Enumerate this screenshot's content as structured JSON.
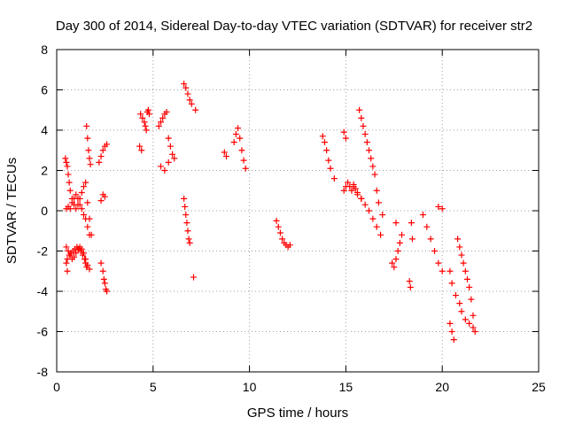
{
  "chart_data": {
    "type": "scatter",
    "title": "Day 300 of 2014, Sidereal Day-to-day VTEC variation (SDTVAR) for receiver str2",
    "xlabel": "GPS time / hours",
    "ylabel": "SDTVAR / TECUs",
    "xlim": [
      0,
      25
    ],
    "ylim": [
      -8,
      8
    ],
    "xticks": [
      0,
      5,
      10,
      15,
      20,
      25
    ],
    "yticks": [
      -8,
      -6,
      -4,
      -2,
      0,
      2,
      4,
      6,
      8
    ],
    "xtick_labels": [
      "0",
      "5",
      "10",
      "15",
      "20",
      "25"
    ],
    "ytick_labels": [
      "-8",
      "-6",
      "-4",
      "-2",
      "0",
      "2",
      "4",
      "6",
      "8"
    ],
    "grid": true,
    "marker": "+",
    "color": "#ff0000",
    "series": [
      {
        "name": "SDTVAR",
        "x": [
          0.45,
          0.5,
          0.55,
          0.6,
          0.65,
          0.7,
          0.8,
          0.9,
          1.0,
          1.1,
          1.2,
          1.3,
          1.4,
          1.5,
          1.6,
          1.7,
          1.8,
          0.5,
          0.6,
          0.7,
          0.8,
          0.9,
          1.0,
          1.1,
          1.2,
          1.3,
          1.4,
          1.5,
          1.6,
          1.7,
          0.55,
          0.65,
          0.75,
          0.85,
          0.95,
          1.05,
          1.15,
          1.25,
          1.35,
          1.45,
          1.5,
          1.55,
          0.5,
          0.6,
          0.7,
          0.8,
          0.9,
          1.0,
          1.1,
          1.2,
          1.3,
          1.4,
          1.5,
          1.6,
          1.7,
          0.5,
          0.55,
          1.55,
          1.6,
          1.65,
          1.7,
          1.75,
          2.2,
          2.3,
          2.4,
          2.5,
          2.6,
          2.4,
          2.3,
          2.5,
          2.3,
          2.4,
          2.45,
          2.5,
          2.55,
          2.6,
          4.35,
          4.45,
          4.55,
          4.6,
          4.65,
          4.7,
          4.75,
          4.8,
          4.3,
          4.4,
          5.3,
          5.4,
          5.5,
          5.6,
          5.7,
          5.8,
          5.9,
          6.0,
          6.1,
          5.4,
          5.6,
          5.8,
          6.6,
          6.7,
          6.8,
          6.9,
          7.0,
          7.2,
          6.6,
          6.65,
          6.7,
          6.75,
          6.8,
          6.85,
          6.9,
          7.1,
          8.7,
          8.8,
          9.2,
          9.3,
          9.4,
          9.5,
          9.6,
          9.7,
          9.8,
          11.4,
          11.5,
          11.6,
          11.7,
          11.8,
          11.9,
          12.0,
          12.1,
          13.8,
          13.9,
          14.0,
          14.1,
          14.2,
          14.4,
          14.9,
          15.0,
          14.9,
          15.0,
          15.1,
          15.2,
          15.3,
          15.4,
          15.5,
          15.6,
          15.8,
          15.7,
          15.8,
          15.9,
          16.0,
          16.1,
          16.2,
          16.3,
          16.4,
          16.5,
          16.6,
          16.7,
          16.9,
          15.4,
          15.6,
          15.8,
          16.0,
          16.2,
          16.4,
          16.6,
          16.8,
          17.4,
          17.5,
          17.6,
          17.7,
          17.8,
          17.9,
          17.6,
          18.3,
          18.35,
          18.4,
          18.45,
          19.0,
          19.2,
          19.4,
          19.6,
          19.8,
          20.0,
          19.8,
          20.0,
          20.4,
          20.5,
          20.6,
          20.4,
          20.5,
          20.7,
          20.9,
          21.0,
          20.8,
          20.9,
          21.0,
          21.1,
          21.2,
          21.3,
          21.4,
          21.5,
          21.6,
          21.7,
          21.2,
          21.4,
          21.6
        ],
        "y": [
          2.6,
          2.4,
          2.2,
          1.8,
          1.4,
          1.0,
          0.6,
          0.3,
          0.1,
          0.3,
          0.6,
          0.9,
          1.2,
          1.4,
          0.4,
          -0.4,
          -1.2,
          0.1,
          0.2,
          0.1,
          0.4,
          0.6,
          0.8,
          0.6,
          0.3,
          0.1,
          -0.2,
          -0.4,
          -0.8,
          -1.2,
          -2.4,
          -2.2,
          -2.1,
          -2.0,
          -1.9,
          -1.8,
          -1.9,
          -2.0,
          -2.2,
          -2.4,
          -2.6,
          -2.8,
          -1.8,
          -2.0,
          -2.2,
          -2.4,
          -2.3,
          -2.1,
          -1.9,
          -1.8,
          -1.9,
          -2.1,
          -2.4,
          -2.7,
          -2.9,
          -2.6,
          -3.0,
          4.2,
          3.6,
          3.0,
          2.6,
          2.3,
          2.4,
          2.7,
          3.0,
          3.2,
          3.3,
          0.8,
          0.5,
          0.7,
          -2.6,
          -3.0,
          -3.4,
          -3.6,
          -3.9,
          -4.0,
          4.8,
          4.6,
          4.4,
          4.2,
          4.0,
          4.9,
          5.0,
          4.8,
          3.2,
          3.0,
          4.2,
          4.4,
          4.6,
          4.8,
          4.9,
          3.6,
          3.2,
          2.8,
          2.6,
          2.2,
          2.0,
          2.4,
          6.3,
          6.1,
          5.8,
          5.5,
          5.3,
          5.0,
          0.6,
          0.2,
          -0.2,
          -0.6,
          -1.0,
          -1.4,
          -1.6,
          -3.3,
          2.9,
          2.7,
          3.4,
          3.8,
          4.1,
          3.6,
          3.0,
          2.5,
          2.1,
          -0.5,
          -0.8,
          -1.1,
          -1.4,
          -1.6,
          -1.7,
          -1.8,
          -1.7,
          3.7,
          3.4,
          3.0,
          2.5,
          2.1,
          1.6,
          3.9,
          3.6,
          1.0,
          1.2,
          1.4,
          1.2,
          1.0,
          1.3,
          1.1,
          0.8,
          0.6,
          5.0,
          4.6,
          4.2,
          3.8,
          3.4,
          3.0,
          2.6,
          2.2,
          1.8,
          1.0,
          0.4,
          -0.2,
          1.2,
          0.9,
          0.6,
          0.3,
          0.0,
          -0.4,
          -0.8,
          -1.2,
          -2.6,
          -2.8,
          -2.4,
          -2.0,
          -1.6,
          -1.2,
          -0.6,
          -3.5,
          -3.8,
          -0.6,
          -1.4,
          -0.2,
          -0.8,
          -1.4,
          -2.0,
          -2.6,
          -3.0,
          0.2,
          0.1,
          -5.6,
          -6.0,
          -6.4,
          -3.0,
          -3.6,
          -4.2,
          -4.6,
          -5.0,
          -1.4,
          -1.8,
          -2.2,
          -2.6,
          -3.0,
          -3.4,
          -3.8,
          -4.4,
          -5.2,
          -6.0,
          -5.4,
          -5.6,
          -5.8
        ]
      }
    ]
  }
}
